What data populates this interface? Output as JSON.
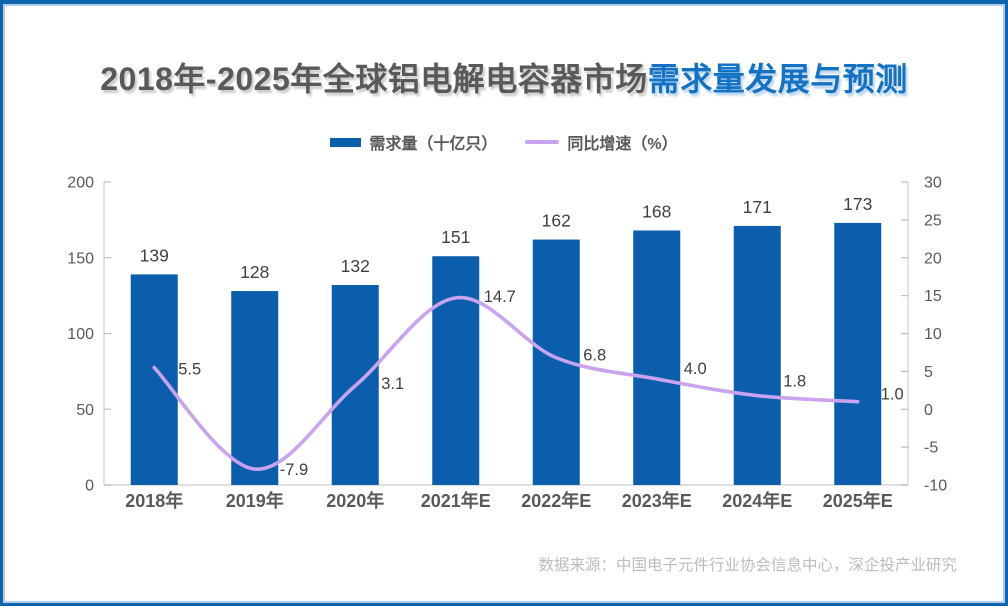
{
  "title": {
    "part1": "2018年-2025年全球铝电解电容器市场",
    "part2": "需求量发展与预测"
  },
  "legend": {
    "bar_label": "需求量（十亿只）",
    "line_label": "同比增速（%）"
  },
  "footer": {
    "source": "数据来源：中国电子元件行业协会信息中心，深企投产业研究"
  },
  "colors": {
    "bar": "#0A5EAC",
    "line": "#C9A3F0",
    "title_gray": "#595959",
    "title_accent": "#1472C4",
    "axis_line": "#D6D6D6",
    "tick_mark": "#BDBDBD",
    "tick_text": "#595959",
    "value_text": "#404040",
    "category_text": "#595959",
    "frame_border": "#0E65AE",
    "footer_text": "#BCBCBC"
  },
  "chart_data": {
    "type": "bar+line",
    "title": "2018年-2025年全球铝电解电容器市场需求量发展与预测",
    "categories": [
      "2018年",
      "2019年",
      "2020年",
      "2021年E",
      "2022年E",
      "2023年E",
      "2024年E",
      "2025年E"
    ],
    "series": [
      {
        "name": "需求量（十亿只）",
        "type": "bar",
        "axis": "left",
        "values": [
          139,
          128,
          132,
          151,
          162,
          168,
          171,
          173
        ]
      },
      {
        "name": "同比增速（%）",
        "type": "line",
        "axis": "right",
        "values": [
          5.5,
          -7.9,
          3.1,
          14.7,
          6.8,
          4.0,
          1.8,
          1.0
        ]
      }
    ],
    "left_axis": {
      "min": 0,
      "max": 200,
      "ticks": [
        "0",
        "50",
        "100",
        "150",
        "200"
      ]
    },
    "right_axis": {
      "min": -10,
      "max": 30,
      "ticks": [
        "-10",
        "-5",
        "0",
        "5",
        "10",
        "15",
        "20",
        "25",
        "30"
      ]
    },
    "grid": false,
    "legend_position": "top"
  }
}
